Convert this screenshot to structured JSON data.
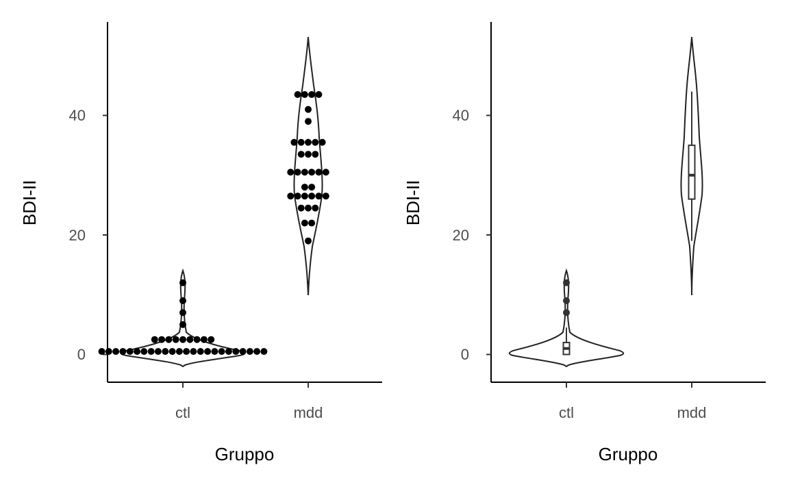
{
  "chart_data": [
    {
      "type": "violin",
      "overlay": "dotplot",
      "xlabel": "Gruppo",
      "ylabel": "BDI-II",
      "categories": [
        "ctl",
        "mdd"
      ],
      "ylim": [
        -4.6,
        55.4
      ],
      "yticks": [
        0,
        20,
        40
      ],
      "grid": false,
      "groups": [
        {
          "name": "ctl",
          "min": -2,
          "max": 14,
          "dots": [
            {
              "y": 0.5,
              "count": 24
            },
            {
              "y": 2.5,
              "count": 9
            },
            {
              "y": 5,
              "count": 1
            },
            {
              "y": 7,
              "count": 1
            },
            {
              "y": 9,
              "count": 1
            },
            {
              "y": 12,
              "count": 1
            }
          ]
        },
        {
          "name": "mdd",
          "min": 10,
          "max": 53,
          "dots": [
            {
              "y": 19,
              "count": 1
            },
            {
              "y": 22,
              "count": 2
            },
            {
              "y": 24.5,
              "count": 3
            },
            {
              "y": 26.5,
              "count": 6
            },
            {
              "y": 28,
              "count": 2
            },
            {
              "y": 30.5,
              "count": 6
            },
            {
              "y": 33.5,
              "count": 3
            },
            {
              "y": 35.5,
              "count": 5
            },
            {
              "y": 39,
              "count": 1
            },
            {
              "y": 41,
              "count": 1
            },
            {
              "y": 43.5,
              "count": 4
            }
          ]
        }
      ]
    },
    {
      "type": "violin",
      "overlay": "boxplot",
      "xlabel": "Gruppo",
      "ylabel": "BDI-II",
      "categories": [
        "ctl",
        "mdd"
      ],
      "ylim": [
        -4.6,
        55.4
      ],
      "yticks": [
        0,
        20,
        40
      ],
      "grid": false,
      "groups": [
        {
          "name": "ctl",
          "min": -2,
          "max": 14,
          "box": {
            "q1": 0,
            "median": 1,
            "q3": 2,
            "whisker_low": 0,
            "whisker_high": 4.5
          },
          "outliers": [
            7,
            9,
            12
          ]
        },
        {
          "name": "mdd",
          "min": 10,
          "max": 53,
          "box": {
            "q1": 26,
            "median": 30,
            "q3": 35,
            "whisker_low": 19,
            "whisker_high": 44
          },
          "outliers": []
        }
      ]
    }
  ]
}
